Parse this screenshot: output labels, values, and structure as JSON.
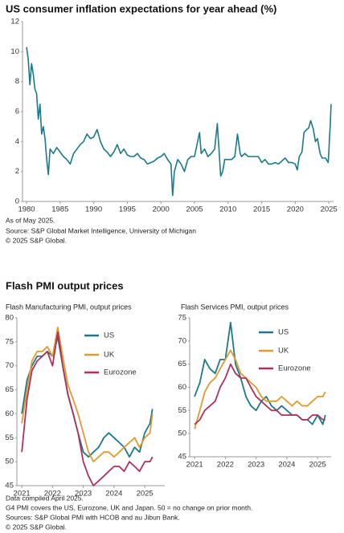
{
  "chart_data": [
    {
      "type": "line",
      "title": "US consumer inflation expectations for year ahead (%)",
      "color": "#1a7a8c",
      "x": [
        1980,
        1980.25,
        1980.5,
        1980.75,
        1981,
        1981.25,
        1981.5,
        1981.75,
        1982,
        1982.25,
        1982.5,
        1982.75,
        1983,
        1983.25,
        1983.5,
        1984,
        1984.5,
        1985,
        1985.5,
        1986,
        1986.5,
        1987,
        1987.5,
        1988,
        1988.5,
        1989,
        1989.5,
        1990,
        1990.5,
        1991,
        1991.5,
        1992,
        1992.5,
        1993,
        1993.5,
        1994,
        1994.5,
        1995,
        1995.5,
        1996,
        1996.5,
        1997,
        1997.5,
        1998,
        1998.5,
        1999,
        1999.5,
        2000,
        2000.5,
        2001,
        2001.5,
        2001.75,
        2002,
        2002.5,
        2003,
        2003.5,
        2004,
        2004.5,
        2005,
        2005.75,
        2006,
        2006.5,
        2007,
        2007.5,
        2008,
        2008.4,
        2008.9,
        2009.2,
        2009.5,
        2010,
        2010.5,
        2011,
        2011.4,
        2011.8,
        2012,
        2012.5,
        2013,
        2013.5,
        2014,
        2014.5,
        2015,
        2015.5,
        2016,
        2016.5,
        2017,
        2017.5,
        2018,
        2018.5,
        2019,
        2019.5,
        2020,
        2020.3,
        2020.6,
        2021,
        2021.3,
        2021.7,
        2022,
        2022.3,
        2022.7,
        2023,
        2023.3,
        2023.7,
        2024,
        2024.5,
        2024.9,
        2025,
        2025.1,
        2025.2,
        2025.33
      ],
      "values": [
        10.3,
        9.5,
        7.8,
        9.2,
        8.5,
        7.5,
        7.2,
        5.5,
        6.5,
        4.5,
        5.0,
        4.2,
        2.8,
        1.8,
        3.5,
        3.2,
        3.6,
        3.3,
        3.0,
        2.8,
        2.5,
        3.2,
        3.5,
        3.8,
        4.0,
        4.5,
        4.2,
        4.3,
        4.8,
        4.0,
        3.5,
        3.3,
        3.0,
        3.3,
        3.8,
        3.2,
        3.5,
        3.1,
        3.0,
        3.0,
        3.2,
        2.9,
        2.8,
        2.5,
        2.6,
        2.7,
        2.9,
        3.0,
        3.2,
        2.8,
        2.5,
        0.4,
        2.0,
        2.8,
        2.5,
        2.0,
        2.8,
        3.0,
        3.0,
        4.6,
        3.2,
        3.5,
        3.0,
        3.2,
        3.5,
        5.2,
        1.7,
        2.0,
        2.8,
        2.8,
        2.8,
        3.0,
        4.5,
        3.2,
        3.0,
        3.2,
        3.0,
        3.0,
        3.0,
        3.0,
        2.6,
        2.8,
        2.5,
        2.5,
        2.6,
        2.5,
        2.7,
        2.9,
        2.6,
        2.6,
        2.5,
        2.1,
        3.0,
        3.3,
        4.6,
        4.8,
        4.9,
        5.4,
        4.8,
        4.0,
        4.2,
        3.2,
        2.9,
        2.9,
        2.6,
        3.3,
        4.3,
        5.0,
        6.5
      ],
      "xlim": [
        1979.4,
        2025.7
      ],
      "xticks": [
        1980,
        1985,
        1990,
        1995,
        2000,
        2005,
        2010,
        2015,
        2020,
        2025
      ],
      "ylim": [
        0,
        12
      ],
      "yticks": [
        0,
        2,
        4,
        6,
        8,
        10,
        12
      ]
    },
    {
      "type": "line",
      "title": "Flash Manufacturing PMI, output prices",
      "legend": "upper right",
      "x": [
        2021,
        2021.17,
        2021.33,
        2021.5,
        2021.67,
        2021.83,
        2022,
        2022.17,
        2022.33,
        2022.5,
        2022.67,
        2022.83,
        2023,
        2023.17,
        2023.33,
        2023.5,
        2023.67,
        2023.83,
        2024,
        2024.17,
        2024.33,
        2024.5,
        2024.67,
        2024.83,
        2025,
        2025.17,
        2025.25
      ],
      "series": [
        {
          "name": "US",
          "color": "#1a7a8c",
          "values": [
            60,
            67,
            70,
            72,
            72,
            73,
            72,
            76,
            70,
            64,
            60,
            56,
            52,
            51,
            52,
            53,
            55,
            56,
            55,
            54,
            53,
            51,
            53,
            52,
            56,
            58,
            61
          ]
        },
        {
          "name": "UK",
          "color": "#e39a2d",
          "values": [
            58,
            65,
            71,
            73,
            73,
            74,
            72,
            78,
            72,
            66,
            63,
            60,
            56,
            52,
            50,
            51,
            52,
            52,
            51,
            52,
            53,
            54,
            55,
            53,
            55,
            56,
            60
          ]
        },
        {
          "name": "Eurozone",
          "color": "#b0305a",
          "values": [
            52,
            63,
            69,
            71,
            72,
            73,
            70,
            77,
            70,
            64,
            60,
            56,
            50,
            47,
            45,
            46,
            47,
            48,
            49,
            49,
            48,
            50,
            49,
            48,
            50,
            50,
            51
          ]
        }
      ],
      "xlim": [
        2020.84,
        2025.65
      ],
      "xticks": [
        2021,
        2022,
        2023,
        2024,
        2025
      ],
      "ylim": [
        45,
        80
      ],
      "yticks": [
        45,
        50,
        55,
        60,
        65,
        70,
        75,
        80
      ]
    },
    {
      "type": "line",
      "title": "Flash Services PMI, output prices",
      "legend": "upper right",
      "x": [
        2021,
        2021.17,
        2021.33,
        2021.5,
        2021.67,
        2021.83,
        2022,
        2022.17,
        2022.33,
        2022.5,
        2022.67,
        2022.83,
        2023,
        2023.17,
        2023.33,
        2023.5,
        2023.67,
        2023.83,
        2024,
        2024.17,
        2024.33,
        2024.5,
        2024.67,
        2024.83,
        2025,
        2025.17,
        2025.25
      ],
      "series": [
        {
          "name": "US",
          "color": "#1a7a8c",
          "values": [
            58,
            61,
            66,
            64,
            63,
            66,
            66,
            74,
            65,
            62,
            58,
            56,
            55,
            57,
            58,
            56,
            55,
            56,
            55,
            54,
            54,
            53,
            53,
            52,
            54,
            52,
            54
          ]
        },
        {
          "name": "UK",
          "color": "#e39a2d",
          "values": [
            51,
            55,
            59,
            61,
            62,
            64,
            66,
            68,
            66,
            63,
            62,
            61,
            60,
            58,
            57,
            57,
            57,
            58,
            57,
            56,
            57,
            56,
            56,
            57,
            58,
            58,
            59
          ]
        },
        {
          "name": "Eurozone",
          "color": "#b0305a",
          "values": [
            52,
            53,
            55,
            56,
            57,
            60,
            62,
            65,
            63,
            62,
            62,
            60,
            58,
            57,
            56,
            55,
            55,
            54,
            54,
            54,
            54,
            53,
            53,
            54,
            54,
            53,
            53
          ]
        }
      ],
      "xlim": [
        2020.84,
        2025.44
      ],
      "xticks": [
        2021,
        2022,
        2023,
        2024,
        2025
      ],
      "ylim": [
        45,
        75
      ],
      "yticks": [
        45,
        50,
        55,
        60,
        65,
        70,
        75
      ]
    }
  ],
  "notes_top": [
    "As of May 2025.",
    "Source: S&P Global Market Intelligence, University of Michigan",
    "© 2025 S&P Global."
  ],
  "section_title": "Flash PMI output prices",
  "notes_bottom": [
    "Data compiled April 2025.",
    "G4 PMI covers the US, Eurozone, UK and Japan. 50 = no change on prior month.",
    "Sources: S&P Global PMI with HCOB and au Jibun Bank.",
    "© 2025 S&P Global."
  ]
}
